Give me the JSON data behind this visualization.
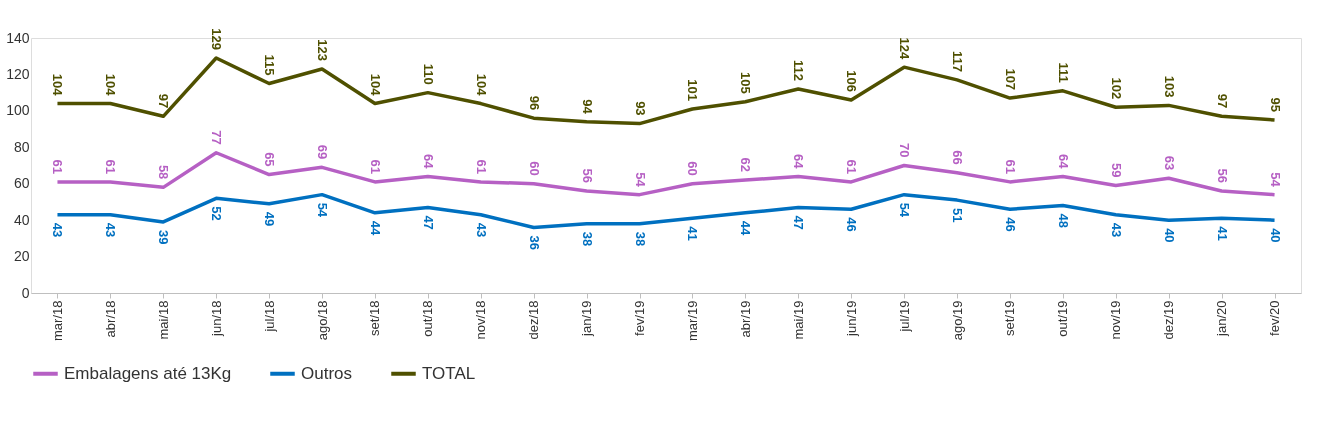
{
  "chart_data": {
    "type": "line",
    "categories": [
      "mar/18",
      "abr/18",
      "mai/18",
      "jun/18",
      "jul/18",
      "ago/18",
      "set/18",
      "out/18",
      "nov/18",
      "dez/18",
      "jan/19",
      "fev/19",
      "mar/19",
      "abr/19",
      "mai/19",
      "jun/19",
      "jul/19",
      "ago/19",
      "set/19",
      "out/19",
      "nov/19",
      "dez/19",
      "jan/20",
      "fev/20"
    ],
    "series": [
      {
        "name": "Embalagens até 13Kg",
        "color": "#b660c4",
        "values": [
          61,
          61,
          58,
          77,
          65,
          69,
          61,
          64,
          61,
          60,
          56,
          54,
          60,
          62,
          64,
          61,
          70,
          66,
          61,
          64,
          59,
          63,
          56,
          54
        ]
      },
      {
        "name": "Outros",
        "color": "#0070c0",
        "values": [
          43,
          43,
          39,
          52,
          49,
          54,
          44,
          47,
          43,
          36,
          38,
          38,
          41,
          44,
          47,
          46,
          54,
          51,
          46,
          48,
          43,
          40,
          41,
          40
        ]
      },
      {
        "name": "TOTAL",
        "color": "#4f5000",
        "values": [
          104,
          104,
          97,
          129,
          115,
          123,
          104,
          110,
          104,
          96,
          94,
          93,
          101,
          105,
          112,
          106,
          124,
          117,
          107,
          111,
          102,
          103,
          97,
          95
        ]
      }
    ],
    "ylim": [
      0,
      140
    ],
    "yticks": [
      0,
      20,
      40,
      60,
      80,
      100,
      120,
      140
    ],
    "grid": false,
    "legend": "bottom",
    "data_labels": true,
    "marker": "none",
    "line_style": "solid"
  }
}
